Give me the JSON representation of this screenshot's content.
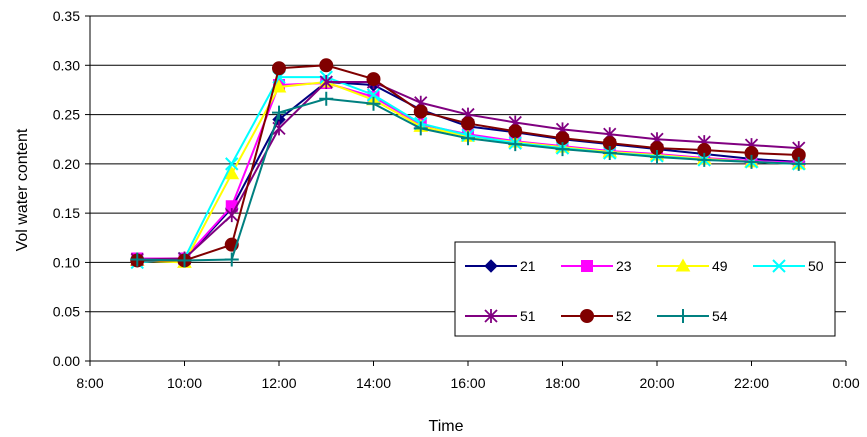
{
  "chart_data": {
    "type": "line",
    "title": "",
    "xlabel": "Time",
    "ylabel": "Vol water content",
    "x": [
      "9:00",
      "10:00",
      "11:00",
      "12:00",
      "13:00",
      "14:00",
      "15:00",
      "16:00",
      "17:00",
      "18:00",
      "19:00",
      "20:00",
      "21:00",
      "22:00",
      "23:00"
    ],
    "xlim": [
      "8:00",
      "0:00"
    ],
    "xticks": [
      "8:00",
      "10:00",
      "12:00",
      "14:00",
      "16:00",
      "18:00",
      "20:00",
      "22:00",
      "0:00"
    ],
    "ylim": [
      0,
      0.35
    ],
    "yticks": [
      "0.00",
      "0.05",
      "0.10",
      "0.15",
      "0.20",
      "0.25",
      "0.30",
      "0.35"
    ],
    "grid": "horizontal",
    "legend_position": "bottom-right",
    "series": [
      {
        "name": "21",
        "color": "#000080",
        "marker": "diamond",
        "values": [
          0.103,
          0.103,
          0.155,
          0.245,
          0.283,
          0.28,
          0.255,
          0.238,
          0.232,
          0.225,
          0.22,
          0.215,
          0.21,
          0.205,
          0.202
        ]
      },
      {
        "name": "23",
        "color": "#FF00FF",
        "marker": "square",
        "values": [
          0.104,
          0.104,
          0.157,
          0.28,
          0.282,
          0.268,
          0.24,
          0.23,
          0.223,
          0.218,
          0.213,
          0.21,
          0.206,
          0.203,
          0.201
        ]
      },
      {
        "name": "49",
        "color": "#FFFF00",
        "marker": "triangle",
        "values": [
          0.102,
          0.1,
          0.19,
          0.278,
          0.283,
          0.265,
          0.238,
          0.228,
          0.222,
          0.217,
          0.212,
          0.209,
          0.205,
          0.202,
          0.2
        ]
      },
      {
        "name": "50",
        "color": "#00FFFF",
        "marker": "x",
        "values": [
          0.1,
          0.104,
          0.2,
          0.288,
          0.288,
          0.27,
          0.241,
          0.229,
          0.221,
          0.216,
          0.211,
          0.208,
          0.204,
          0.202,
          0.2
        ]
      },
      {
        "name": "51",
        "color": "#800080",
        "marker": "star",
        "values": [
          0.103,
          0.104,
          0.148,
          0.236,
          0.283,
          0.283,
          0.262,
          0.25,
          0.242,
          0.235,
          0.23,
          0.225,
          0.222,
          0.219,
          0.216
        ]
      },
      {
        "name": "52",
        "color": "#800000",
        "marker": "circle",
        "values": [
          0.102,
          0.102,
          0.118,
          0.297,
          0.3,
          0.286,
          0.253,
          0.241,
          0.233,
          0.226,
          0.221,
          0.216,
          0.214,
          0.211,
          0.209
        ]
      },
      {
        "name": "54",
        "color": "#008080",
        "marker": "plus",
        "values": [
          0.103,
          0.102,
          0.103,
          0.252,
          0.266,
          0.261,
          0.236,
          0.226,
          0.22,
          0.215,
          0.211,
          0.207,
          0.204,
          0.202,
          0.2
        ]
      }
    ]
  }
}
